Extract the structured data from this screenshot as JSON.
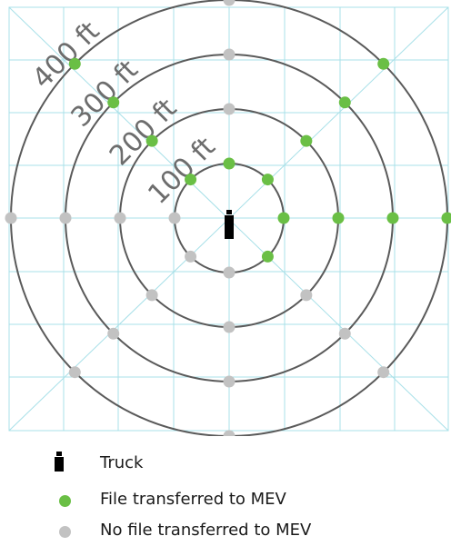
{
  "colors": {
    "grid": "#a8e0e8",
    "ring": "#5a5a5a",
    "green": "#6abf45",
    "gray": "#c2c2c2",
    "ring_label": "#6d6d6d",
    "truck": "#000000"
  },
  "rings": [
    {
      "radius_ft": 100,
      "label": "100 ft"
    },
    {
      "radius_ft": 200,
      "label": "200 ft"
    },
    {
      "radius_ft": 300,
      "label": "300 ft"
    },
    {
      "radius_ft": 400,
      "label": "400 ft"
    }
  ],
  "measurement_points": [
    {
      "ring_ft": 100,
      "angle_deg": 0,
      "file_transferred": true
    },
    {
      "ring_ft": 100,
      "angle_deg": 45,
      "file_transferred": true
    },
    {
      "ring_ft": 100,
      "angle_deg": 90,
      "file_transferred": true
    },
    {
      "ring_ft": 100,
      "angle_deg": 135,
      "file_transferred": true
    },
    {
      "ring_ft": 100,
      "angle_deg": 180,
      "file_transferred": false
    },
    {
      "ring_ft": 100,
      "angle_deg": 225,
      "file_transferred": false
    },
    {
      "ring_ft": 100,
      "angle_deg": 270,
      "file_transferred": false
    },
    {
      "ring_ft": 100,
      "angle_deg": 315,
      "file_transferred": true
    },
    {
      "ring_ft": 200,
      "angle_deg": 0,
      "file_transferred": true
    },
    {
      "ring_ft": 200,
      "angle_deg": 45,
      "file_transferred": true
    },
    {
      "ring_ft": 200,
      "angle_deg": 90,
      "file_transferred": false
    },
    {
      "ring_ft": 200,
      "angle_deg": 135,
      "file_transferred": true
    },
    {
      "ring_ft": 200,
      "angle_deg": 180,
      "file_transferred": false
    },
    {
      "ring_ft": 200,
      "angle_deg": 225,
      "file_transferred": false
    },
    {
      "ring_ft": 200,
      "angle_deg": 270,
      "file_transferred": false
    },
    {
      "ring_ft": 200,
      "angle_deg": 315,
      "file_transferred": false
    },
    {
      "ring_ft": 300,
      "angle_deg": 0,
      "file_transferred": true
    },
    {
      "ring_ft": 300,
      "angle_deg": 45,
      "file_transferred": true
    },
    {
      "ring_ft": 300,
      "angle_deg": 90,
      "file_transferred": false
    },
    {
      "ring_ft": 300,
      "angle_deg": 135,
      "file_transferred": true
    },
    {
      "ring_ft": 300,
      "angle_deg": 180,
      "file_transferred": false
    },
    {
      "ring_ft": 300,
      "angle_deg": 225,
      "file_transferred": false
    },
    {
      "ring_ft": 300,
      "angle_deg": 270,
      "file_transferred": false
    },
    {
      "ring_ft": 300,
      "angle_deg": 315,
      "file_transferred": false
    },
    {
      "ring_ft": 400,
      "angle_deg": 0,
      "file_transferred": true
    },
    {
      "ring_ft": 400,
      "angle_deg": 45,
      "file_transferred": true
    },
    {
      "ring_ft": 400,
      "angle_deg": 90,
      "file_transferred": false
    },
    {
      "ring_ft": 400,
      "angle_deg": 135,
      "file_transferred": true
    },
    {
      "ring_ft": 400,
      "angle_deg": 180,
      "file_transferred": false
    },
    {
      "ring_ft": 400,
      "angle_deg": 225,
      "file_transferred": false
    },
    {
      "ring_ft": 400,
      "angle_deg": 270,
      "file_transferred": false
    },
    {
      "ring_ft": 400,
      "angle_deg": 315,
      "file_transferred": false
    }
  ],
  "legend": {
    "truck": "Truck",
    "transferred": "File transferred to MEV",
    "not_transferred": "No file transferred to MEV"
  }
}
